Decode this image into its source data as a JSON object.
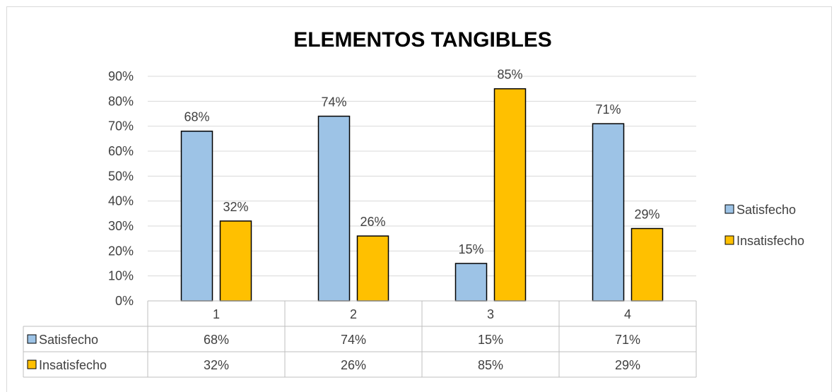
{
  "chart_data": {
    "type": "bar",
    "title": "ELEMENTOS TANGIBLES",
    "categories": [
      "1",
      "2",
      "3",
      "4"
    ],
    "series": [
      {
        "name": "Satisfecho",
        "values": [
          68,
          74,
          15,
          71
        ],
        "labels": [
          "68%",
          "74%",
          "15%",
          "71%"
        ],
        "color": "#9dc3e6"
      },
      {
        "name": "Insatisfecho",
        "values": [
          32,
          26,
          85,
          29
        ],
        "labels": [
          "32%",
          "26%",
          "85%",
          "29%"
        ],
        "color": "#ffc000"
      }
    ],
    "ylim": [
      0,
      90
    ],
    "yticks": [
      "0%",
      "10%",
      "20%",
      "30%",
      "40%",
      "50%",
      "60%",
      "70%",
      "80%",
      "90%"
    ],
    "grid": true,
    "legend": "right",
    "data_table": true
  }
}
